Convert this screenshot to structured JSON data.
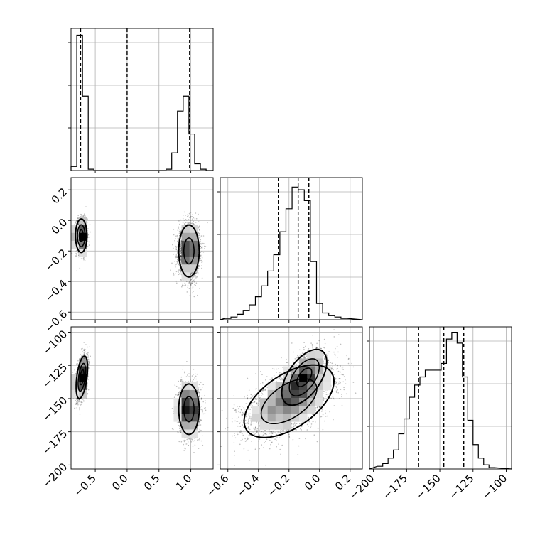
{
  "chart_data": {
    "type": "corner",
    "grid": true,
    "parameters": [
      {
        "range": [
          -0.88,
          1.35
        ],
        "ticks": [
          -0.5,
          0.0,
          0.5,
          1.0
        ],
        "tick_labels": [
          "−0.5",
          "0.0",
          "0.5",
          "1.0"
        ],
        "hist_ymax": 1.0,
        "hist_edges": [
          -0.88,
          -0.79,
          -0.7,
          -0.61,
          -0.52,
          -0.43,
          0.61,
          0.7,
          0.79,
          0.88,
          0.97,
          1.06,
          1.15,
          1.24,
          1.33
        ],
        "hist_counts": [
          0.03,
          1.0,
          0.55,
          0.01,
          0.0,
          0.0,
          0.01,
          0.13,
          0.44,
          0.55,
          0.27,
          0.05,
          0.01,
          0.0
        ],
        "quantiles": [
          -0.73,
          0.0,
          0.98
        ]
      },
      {
        "range": [
          -0.65,
          0.28
        ],
        "ticks": [
          -0.6,
          -0.4,
          -0.2,
          0.0,
          0.2
        ],
        "tick_labels": [
          "−0.6",
          "−0.4",
          "−0.2",
          "0.0",
          "0.2"
        ],
        "hist_ymax": 1.0,
        "hist_edges": [
          -0.62,
          -0.58,
          -0.54,
          -0.5,
          -0.46,
          -0.42,
          -0.38,
          -0.34,
          -0.3,
          -0.26,
          -0.22,
          -0.18,
          -0.14,
          -0.1,
          -0.06,
          -0.02,
          0.02,
          0.06,
          0.1,
          0.14,
          0.18
        ],
        "hist_counts": [
          0.01,
          0.02,
          0.04,
          0.07,
          0.11,
          0.17,
          0.25,
          0.36,
          0.48,
          0.65,
          0.82,
          0.98,
          0.96,
          0.88,
          0.43,
          0.12,
          0.05,
          0.03,
          0.02,
          0.01
        ],
        "quantiles": [
          -0.27,
          -0.14,
          -0.07
        ]
      },
      {
        "range": [
          -203,
          -96
        ],
        "ticks": [
          -200,
          -175,
          -150,
          -125,
          -100
        ],
        "tick_labels": [
          "−200",
          "−175",
          "−150",
          "−125",
          "−100"
        ],
        "hist_ymax": 1.0,
        "hist_edges": [
          -197,
          -193,
          -189,
          -185,
          -181,
          -177,
          -173,
          -169,
          -165,
          -161,
          -157,
          -153,
          -149,
          -145,
          -141,
          -137,
          -133,
          -129,
          -125,
          -121,
          -117,
          -113,
          -109
        ],
        "hist_counts": [
          0.02,
          0.04,
          0.08,
          0.14,
          0.26,
          0.37,
          0.53,
          0.62,
          0.68,
          0.73,
          0.73,
          0.73,
          0.78,
          0.96,
          1.01,
          0.93,
          0.68,
          0.36,
          0.18,
          0.08,
          0.03,
          0.01
        ],
        "quantiles": [
          -166,
          -147,
          -132
        ]
      }
    ],
    "scatter_panels": [
      {
        "x_param": 0,
        "y_param": 1,
        "modes": [
          {
            "center": [
              -0.72,
              -0.1
            ],
            "sigma": [
              0.045,
              0.055
            ],
            "rho": 0.0,
            "points": 1400,
            "contours": [
              0.7,
              1.3,
              2.0
            ]
          },
          {
            "center": [
              0.97,
              -0.2
            ],
            "sigma": [
              0.08,
              0.085
            ],
            "rho": 0.0,
            "points": 2600,
            "contours": [
              1.0,
              2.0
            ]
          }
        ]
      },
      {
        "x_param": 0,
        "y_param": 2,
        "modes": [
          {
            "center": [
              -0.71,
              -134
            ],
            "sigma": [
              0.045,
              8.0
            ],
            "rho": 0.45,
            "points": 1400,
            "contours": [
              0.7,
              1.3,
              2.0
            ]
          },
          {
            "center": [
              0.97,
              -158
            ],
            "sigma": [
              0.08,
              9.5
            ],
            "rho": 0.0,
            "points": 2600,
            "contours": [
              1.0,
              2.0
            ]
          }
        ]
      },
      {
        "x_param": 1,
        "y_param": 2,
        "modes": [
          {
            "center": [
              -0.1,
              -134
            ],
            "sigma": [
              0.07,
              10.0
            ],
            "rho": 0.55,
            "points": 1500,
            "contours": [
              0.7,
              1.4,
              2.1
            ]
          },
          {
            "center": [
              -0.2,
              -152
            ],
            "sigma": [
              0.14,
              13.0
            ],
            "rho": 0.55,
            "points": 3000,
            "contours": [
              1.3,
              2.1
            ]
          }
        ]
      }
    ]
  }
}
